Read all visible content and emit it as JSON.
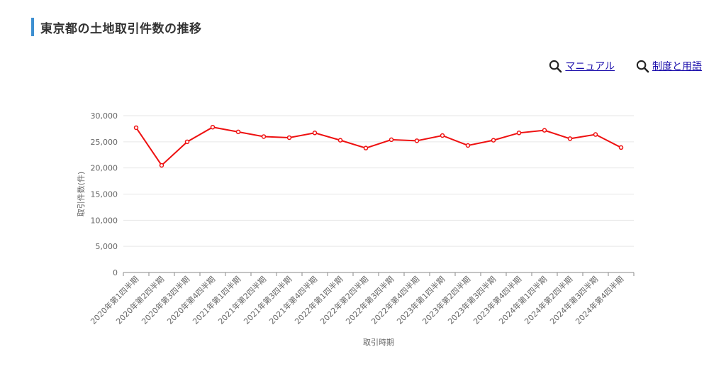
{
  "page": {
    "title": "東京都の土地取引件数の推移"
  },
  "links": [
    {
      "label": "マニュアル",
      "icon": "search-icon"
    },
    {
      "label": "制度と用語",
      "icon": "search-icon"
    }
  ],
  "colors": {
    "accent": "#3d8fd1",
    "series": "#ee1111",
    "link": "#1a0dab"
  },
  "chart_data": {
    "type": "line",
    "title": "",
    "xlabel": "取引時期",
    "ylabel": "取引件数(件)",
    "ylim": [
      0,
      30000
    ],
    "yticks": [
      "0",
      "5,000",
      "10,000",
      "15,000",
      "20,000",
      "25,000",
      "30,000"
    ],
    "grid": true,
    "categories": [
      "2020年第1四半期",
      "2020年第2四半期",
      "2020年第3四半期",
      "2020年第4四半期",
      "2021年第1四半期",
      "2021年第2四半期",
      "2021年第3四半期",
      "2021年第4四半期",
      "2022年第1四半期",
      "2022年第2四半期",
      "2022年第3四半期",
      "2022年第4四半期",
      "2023年第1四半期",
      "2023年第2四半期",
      "2023年第3四半期",
      "2023年第4四半期",
      "2024年第1四半期",
      "2024年第2四半期",
      "2024年第3四半期",
      "2024年第4四半期"
    ],
    "series": [
      {
        "values": [
          27700,
          20500,
          25000,
          27800,
          26900,
          26000,
          25800,
          26700,
          25300,
          23800,
          25400,
          25200,
          26200,
          24300,
          25300,
          26700,
          27200,
          25600,
          26400,
          23900
        ]
      }
    ]
  }
}
